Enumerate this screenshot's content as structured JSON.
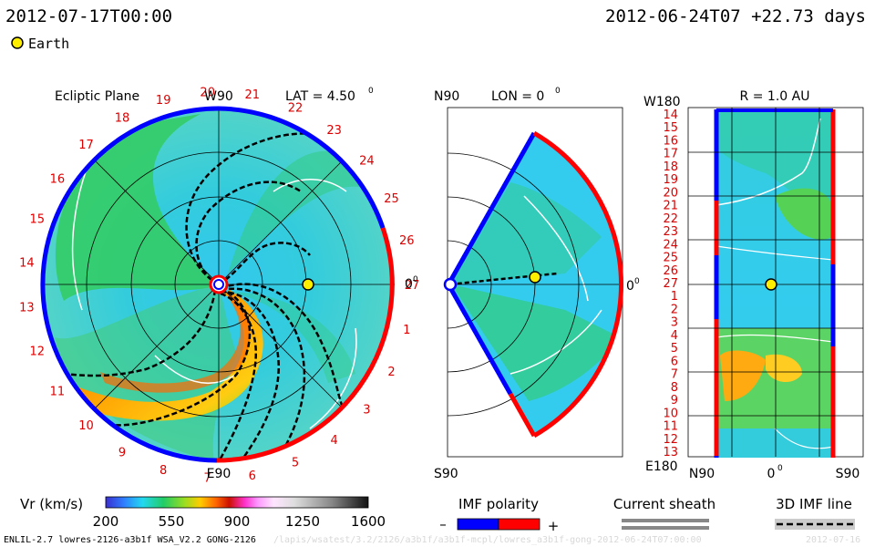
{
  "header": {
    "date": "2012-07-17T00:00",
    "ref_time": "2012-06-24T07 +22.73 days"
  },
  "legend": {
    "earth_label": "Earth",
    "earth_color": "#ffee00"
  },
  "chart_data": [
    {
      "type": "heatmap",
      "panel": "ecliptic",
      "title": "Ecliptic Plane",
      "lat_label": "LAT = 4.50",
      "lat_deg_mark": "0",
      "top_label": "W90",
      "bottom_label": "E90",
      "right_label": "0",
      "right_deg_mark": "0",
      "rim_labels": [
        "27",
        "1",
        "2",
        "3",
        "4",
        "5",
        "6",
        "7",
        "8",
        "9",
        "10",
        "11",
        "12",
        "13",
        "14",
        "15",
        "16",
        "17",
        "18",
        "19",
        "20",
        "21",
        "22",
        "23",
        "24",
        "25",
        "26"
      ],
      "earth_position_au": 1.0
    },
    {
      "type": "heatmap",
      "panel": "meridional",
      "title": "LON = 0",
      "title_deg_mark": "0",
      "top_label": "N90",
      "bottom_label": "S90",
      "right_label": "0",
      "right_deg_mark": "0"
    },
    {
      "type": "heatmap",
      "panel": "radial",
      "title": "R = 1.0 AU",
      "top_left_label": "W180",
      "bottom_left_label": "E180",
      "x_labels": [
        "N90",
        "0",
        "S90"
      ],
      "x_deg_mark": "0",
      "y_labels": [
        "14",
        "15",
        "16",
        "17",
        "18",
        "19",
        "20",
        "21",
        "22",
        "23",
        "24",
        "25",
        "26",
        "27",
        "1",
        "2",
        "3",
        "4",
        "5",
        "6",
        "7",
        "8",
        "9",
        "10",
        "11",
        "12",
        "13"
      ]
    }
  ],
  "colorbar": {
    "label": "Vr (km/s)",
    "ticks": [
      "200",
      "550",
      "900",
      "1250",
      "1600"
    ],
    "min": 200,
    "max": 1600
  },
  "imf_legend": {
    "title": "IMF polarity",
    "minus": "–",
    "plus": "+",
    "neg_color": "#0000ff",
    "pos_color": "#ff0000"
  },
  "sheath_legend": {
    "title": "Current sheath"
  },
  "imf_line_legend": {
    "title": "3D IMF line"
  },
  "footer": {
    "model": "ENLIL-2.7 lowres-2126-a3b1f WSA_V2.2 GONG-2126",
    "path": "/lapis/wsatest/3.2/2126/a3b1f/a3b1f-mcpl/lowres_a3b1f-gong-2012-06-24T07:00:00",
    "date_tail": "2012-07-16"
  }
}
